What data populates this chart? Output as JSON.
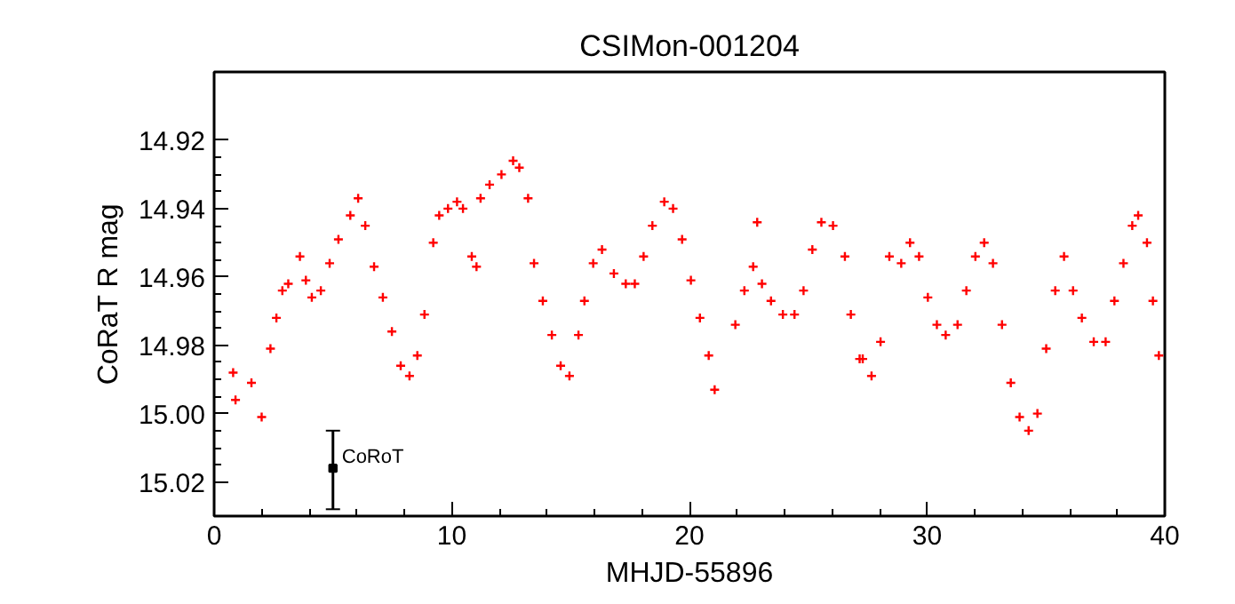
{
  "chart_data": {
    "type": "scatter",
    "title": "CSIMon-001204",
    "xlabel": "MHJD-55896",
    "ylabel": "CoRaT R mag",
    "xlim": [
      0,
      40
    ],
    "ylim": [
      15.03,
      14.9
    ],
    "xticks": [
      0,
      10,
      20,
      30,
      40
    ],
    "yticks": [
      14.92,
      14.94,
      14.96,
      14.98,
      {
        "value": 15.0,
        "label": "15.00"
      },
      15.02
    ],
    "grid": false,
    "marker": "cross",
    "series": [
      {
        "color": "#ff0000",
        "x": [
          0.8,
          0.9,
          1.57,
          2.0,
          2.37,
          2.62,
          2.87,
          3.12,
          3.61,
          3.86,
          4.11,
          4.49,
          4.86,
          5.23,
          5.73,
          6.06,
          6.36,
          6.73,
          7.1,
          7.48,
          7.85,
          8.22,
          8.55,
          8.85,
          9.22,
          9.47,
          9.84,
          10.22,
          10.47,
          10.84,
          11.04,
          11.21,
          11.59,
          12.09,
          12.58,
          12.84,
          13.21,
          13.46,
          13.83,
          14.21,
          14.58,
          14.95,
          15.33,
          15.58,
          15.95,
          16.32,
          16.82,
          17.32,
          17.7,
          18.07,
          18.44,
          18.94,
          19.31,
          19.69,
          20.06,
          20.44,
          20.81,
          21.06,
          21.93,
          22.31,
          22.68,
          22.85,
          23.05,
          23.43,
          23.93,
          24.42,
          24.8,
          25.17,
          25.55,
          26.04,
          26.54,
          26.79,
          27.16,
          27.29,
          27.66,
          28.04,
          28.41,
          28.91,
          29.28,
          29.66,
          30.03,
          30.41,
          30.78,
          31.28,
          31.65,
          32.03,
          32.4,
          32.77,
          33.15,
          33.52,
          33.89,
          34.27,
          34.64,
          35.01,
          35.39,
          35.76,
          36.14,
          36.51,
          37.01,
          37.51,
          37.88,
          38.26,
          38.63,
          38.88,
          39.25,
          39.5,
          39.75
        ],
        "values": [
          14.988,
          14.996,
          14.991,
          15.001,
          14.981,
          14.972,
          14.964,
          14.962,
          14.954,
          14.961,
          14.966,
          14.964,
          14.956,
          14.949,
          14.942,
          14.937,
          14.945,
          14.957,
          14.966,
          14.976,
          14.986,
          14.989,
          14.983,
          14.971,
          14.95,
          14.942,
          14.94,
          14.938,
          14.94,
          14.954,
          14.957,
          14.937,
          14.933,
          14.93,
          14.926,
          14.928,
          14.937,
          14.956,
          14.967,
          14.977,
          14.986,
          14.989,
          14.977,
          14.967,
          14.956,
          14.952,
          14.959,
          14.962,
          14.962,
          14.954,
          14.945,
          14.938,
          14.94,
          14.949,
          14.961,
          14.972,
          14.983,
          14.993,
          14.974,
          14.964,
          14.957,
          14.944,
          14.962,
          14.967,
          14.971,
          14.971,
          14.964,
          14.952,
          14.944,
          14.945,
          14.954,
          14.971,
          14.984,
          14.984,
          14.989,
          14.979,
          14.954,
          14.956,
          14.95,
          14.954,
          14.966,
          14.974,
          14.977,
          14.974,
          14.964,
          14.954,
          14.95,
          14.956,
          14.974,
          14.991,
          15.001,
          15.005,
          15.0,
          14.981,
          14.964,
          14.954,
          14.964,
          14.972,
          14.979,
          14.979,
          14.967,
          14.956,
          14.945,
          14.942,
          14.95,
          14.967,
          14.983
        ]
      },
      {
        "name": "CoRoT",
        "color": "#000000",
        "marker": "square",
        "x": [
          5
        ],
        "values": [
          15.016
        ],
        "errors": [
          [
            15.005,
            15.028
          ]
        ]
      }
    ]
  }
}
